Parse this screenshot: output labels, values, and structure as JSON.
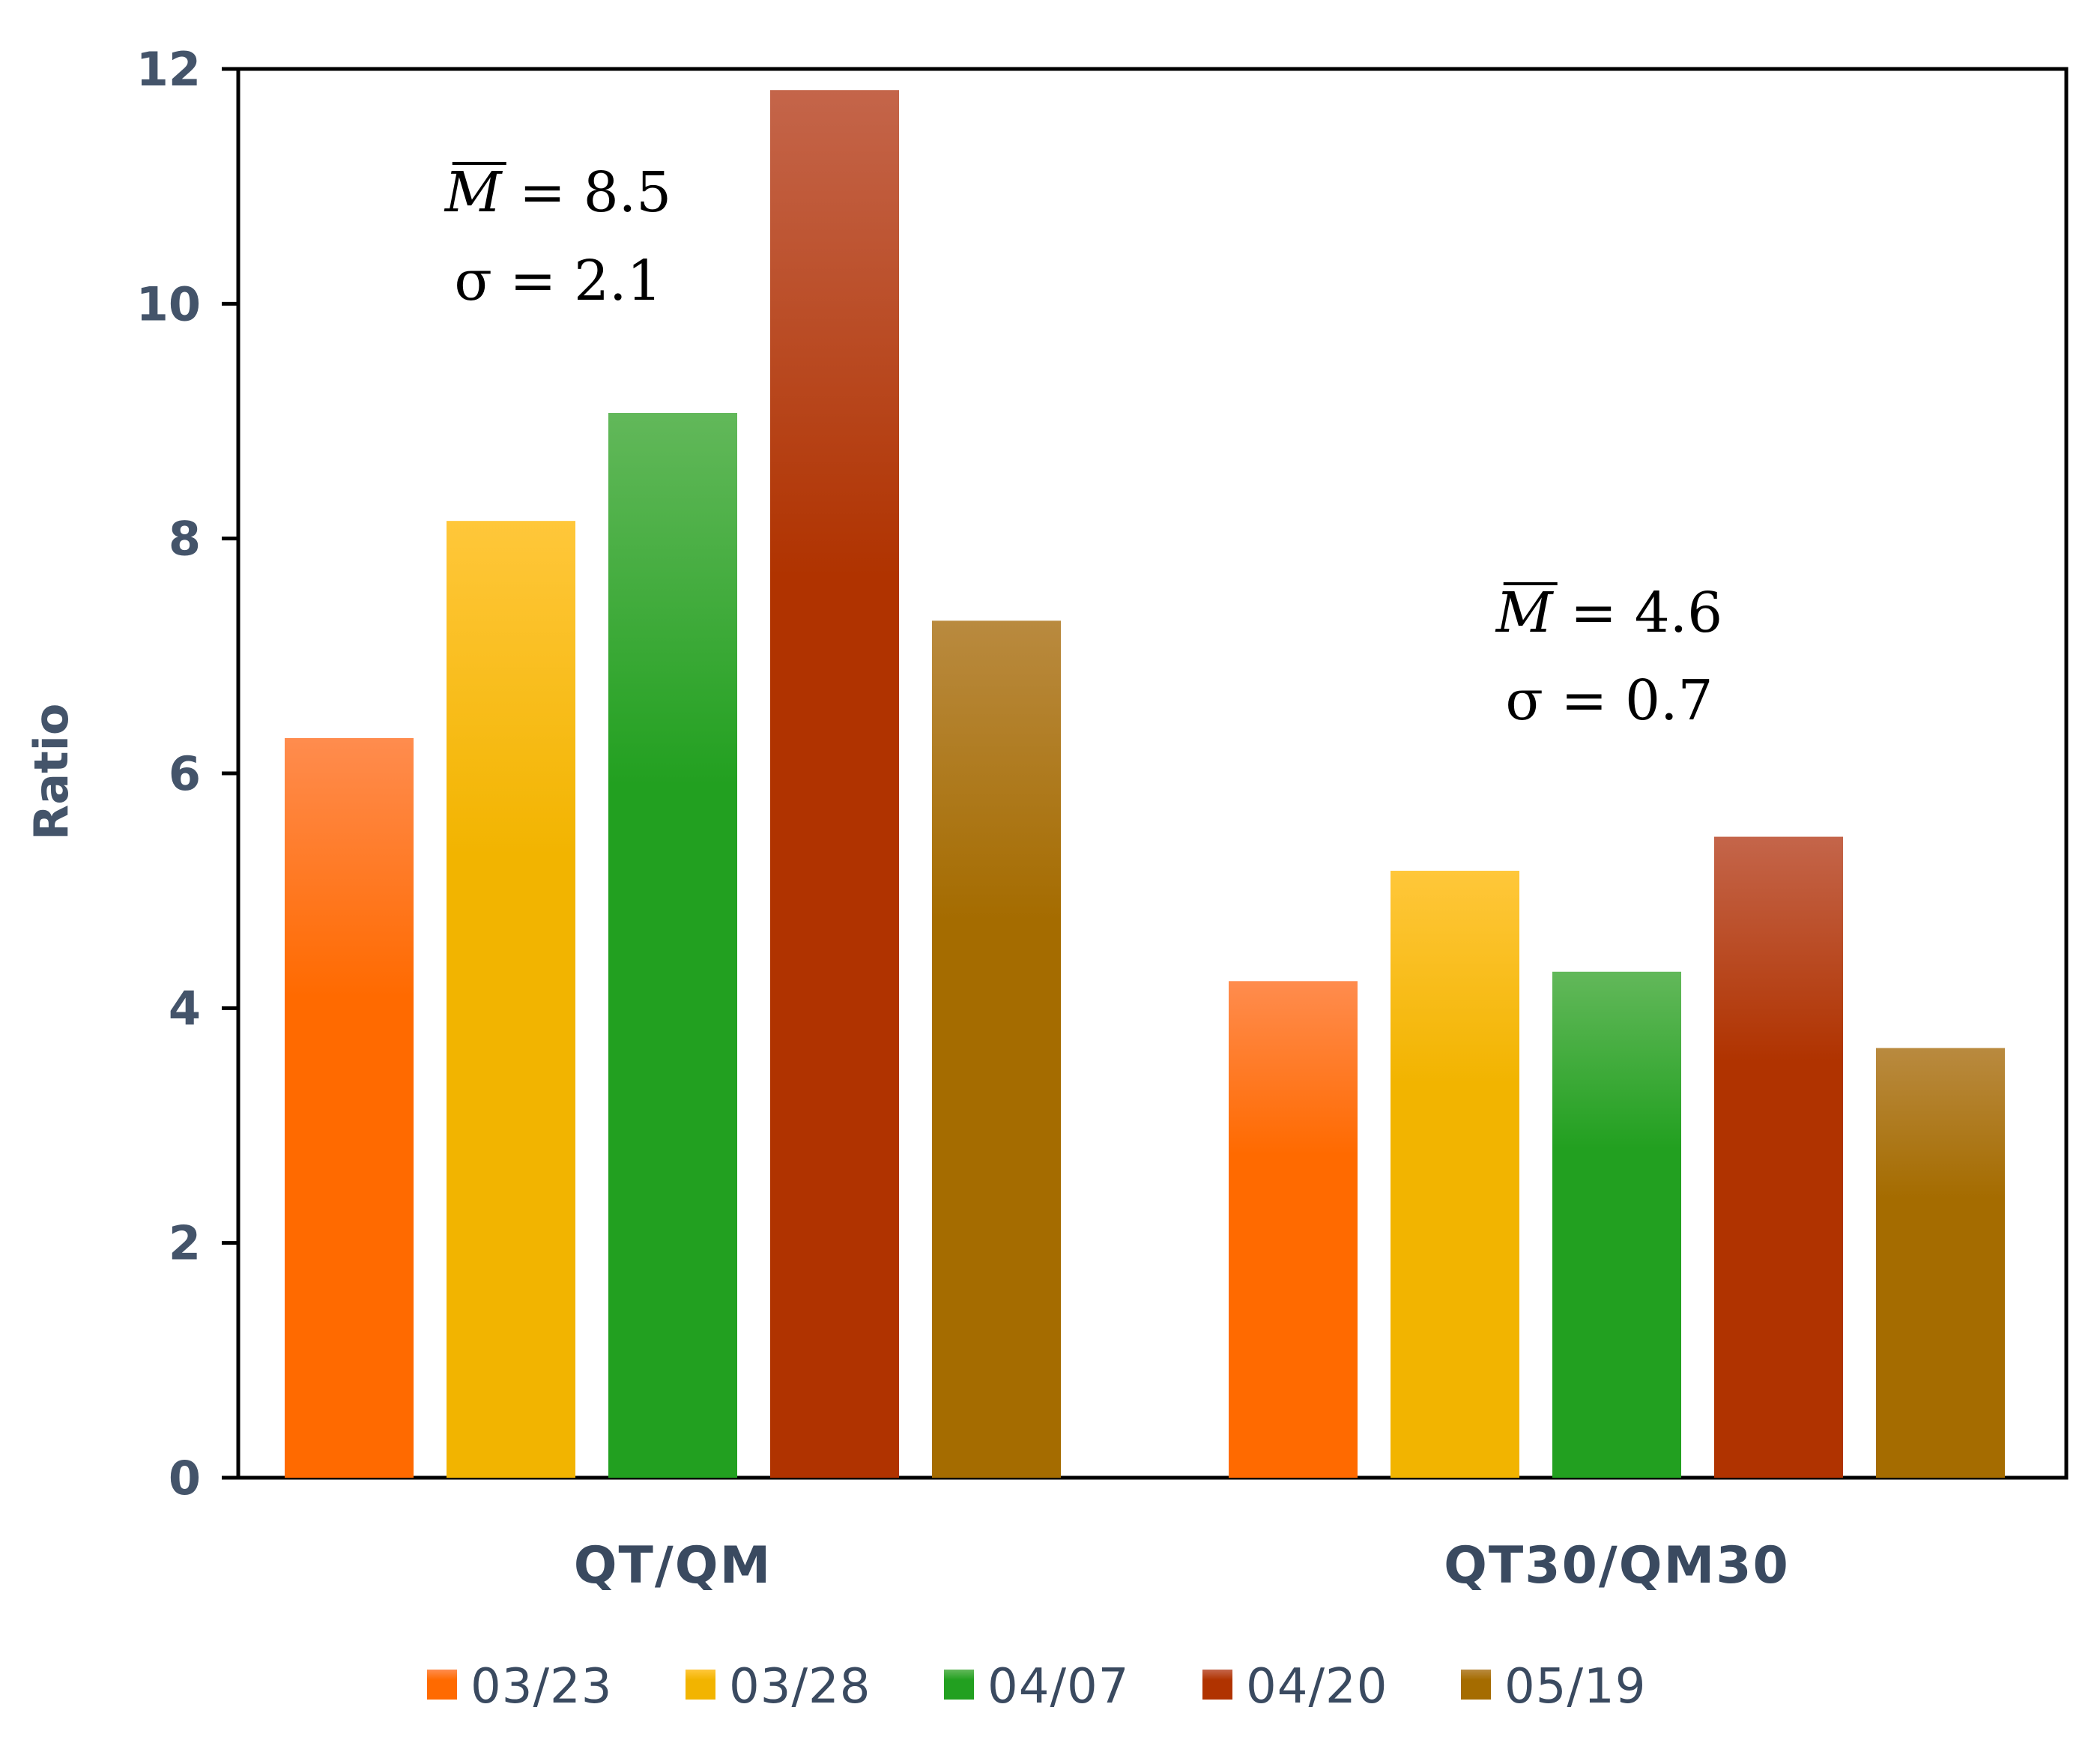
{
  "chart_data": {
    "type": "bar",
    "title": "",
    "xlabel": "",
    "ylabel": "Ratio",
    "ylim": [
      0,
      12
    ],
    "yticks": [
      0,
      2,
      4,
      6,
      8,
      10,
      12
    ],
    "grid": false,
    "legend_position": "bottom",
    "categories": [
      "QT/QM",
      "QT30/QM30"
    ],
    "series": [
      {
        "name": "03/23",
        "values": [
          6.3,
          4.23
        ],
        "color_top": "#ff8c4e",
        "color_bottom": "#ff6a00"
      },
      {
        "name": "03/28",
        "values": [
          8.15,
          5.17
        ],
        "color_top": "#ffc73a",
        "color_bottom": "#f2b400"
      },
      {
        "name": "04/07",
        "values": [
          9.07,
          4.31
        ],
        "color_top": "#62b85a",
        "color_bottom": "#22a020"
      },
      {
        "name": "04/20",
        "values": [
          11.82,
          5.46
        ],
        "color_top": "#c4654a",
        "color_bottom": "#b03300"
      },
      {
        "name": "05/19",
        "values": [
          7.3,
          3.66
        ],
        "color_top": "#b98a3f",
        "color_bottom": "#a56c00"
      }
    ],
    "annotations": [
      {
        "category": "QT/QM",
        "mean_symbol": "M",
        "mean_text": "= 8.5",
        "sigma_text": "σ = 2.1"
      },
      {
        "category": "QT30/QM30",
        "mean_symbol": "M",
        "mean_text": "= 4.6",
        "sigma_text": "σ = 0.7"
      }
    ]
  }
}
